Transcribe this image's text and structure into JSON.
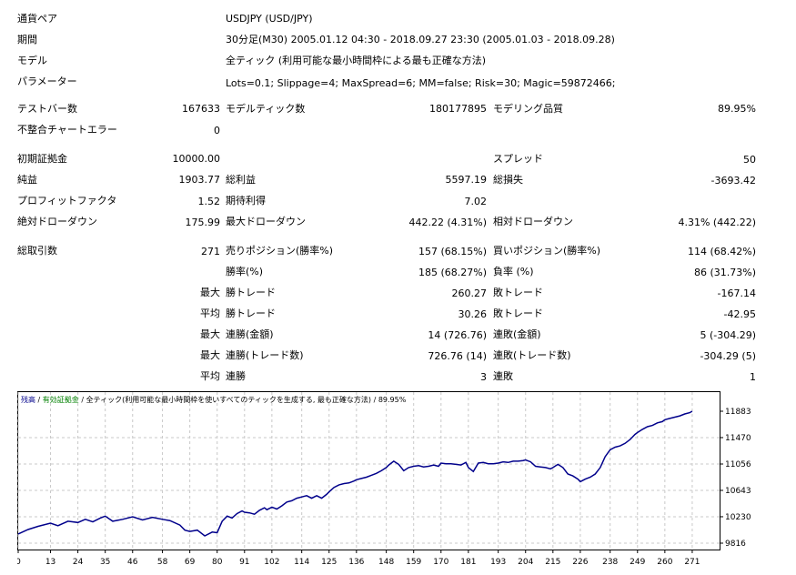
{
  "info": {
    "symbol_label": "通貨ペア",
    "symbol": "USDJPY (USD/JPY)",
    "period_label": "期間",
    "period": "30分足(M30) 2005.01.12 04:30 - 2018.09.27 23:30 (2005.01.03 - 2018.09.28)",
    "model_label": "モデル",
    "model": "全ティック (利用可能な最小時間枠による最も正確な方法)",
    "params_label": "パラメーター",
    "params": "Lots=0.1; Slippage=4; MaxSpread=6; MM=false; Risk=30; Magic=59872466;"
  },
  "stats": {
    "bars_label": "テストバー数",
    "bars": "167633",
    "ticks_label": "モデルティック数",
    "ticks": "180177895",
    "quality_label": "モデリング品質",
    "quality": "89.95%",
    "errors_label": "不整合チャートエラー",
    "errors": "0",
    "deposit_label": "初期証拠金",
    "deposit": "10000.00",
    "spread_label": "スプレッド",
    "spread": "50",
    "net_label": "純益",
    "net": "1903.77",
    "gross_profit_label": "総利益",
    "gross_profit": "5597.19",
    "gross_loss_label": "総損失",
    "gross_loss": "-3693.42",
    "pf_label": "プロフィットファクタ",
    "pf": "1.52",
    "payoff_label": "期待利得",
    "payoff": "7.02",
    "abs_dd_label": "絶対ドローダウン",
    "abs_dd": "175.99",
    "max_dd_label": "最大ドローダウン",
    "max_dd": "442.22 (4.31%)",
    "rel_dd_label": "相対ドローダウン",
    "rel_dd": "4.31% (442.22)",
    "trades_label": "総取引数",
    "trades": "271",
    "short_label": "売りポジション(勝率%)",
    "short": "157 (68.15%)",
    "long_label": "買いポジション(勝率%)",
    "long": "114 (68.42%)",
    "win_rate_label": "勝率(%)",
    "win_rate": "185 (68.27%)",
    "loss_rate_label": "負率 (%)",
    "loss_rate": "86 (31.73%)",
    "max_label": "最大",
    "avg_label": "平均",
    "largest_win_label": "勝トレード",
    "largest_win": "260.27",
    "largest_loss_label": "敗トレード",
    "largest_loss": "-167.14",
    "avg_win_label": "勝トレード",
    "avg_win": "30.26",
    "avg_loss_label": "敗トレード",
    "avg_loss": "-42.95",
    "max_cons_wins_label": "連勝(金額)",
    "max_cons_wins": "14 (726.76)",
    "max_cons_losses_label": "連敗(金額)",
    "max_cons_losses": "5 (-304.29)",
    "max_cons_profit_label": "連勝(トレード数)",
    "max_cons_profit": "726.76 (14)",
    "max_cons_loss_label": "連敗(トレード数)",
    "max_cons_loss": "-304.29 (5)",
    "avg_cons_wins_label": "連勝",
    "avg_cons_wins": "3",
    "avg_cons_losses_label": "連敗",
    "avg_cons_losses": "1"
  },
  "chart_legend": {
    "balance": "残高",
    "sep1": " / ",
    "equity": "有効証拠金",
    "rest": " / 全ティック(利用可能な最小時間枠を使いすべてのティックを生成する, 最も正確な方法) / 89.95%"
  },
  "colors": {
    "balance": "#00008b",
    "equity": "#008000",
    "grid": "#c8c8c8"
  },
  "chart_data": {
    "type": "line",
    "title": "",
    "x_ticks": [
      "0",
      "13",
      "24",
      "35",
      "46",
      "58",
      "69",
      "80",
      "91",
      "102",
      "114",
      "125",
      "136",
      "148",
      "159",
      "170",
      "181",
      "193",
      "204",
      "215",
      "226",
      "238",
      "249",
      "260",
      "271"
    ],
    "y_ticks": [
      "11883",
      "11470",
      "11056",
      "10643",
      "10230",
      "9816"
    ],
    "ylim": [
      9816,
      11883
    ],
    "xlim": [
      0,
      282
    ],
    "series": [
      {
        "x": [
          0,
          4,
          8,
          13,
          16,
          20,
          24,
          27,
          30,
          33,
          35,
          38,
          42,
          46,
          50,
          54,
          58,
          61,
          65,
          67,
          69,
          72,
          75,
          78,
          80,
          82,
          84,
          86,
          88,
          90,
          91,
          93,
          95,
          97,
          99,
          100,
          102,
          104,
          106,
          108,
          110,
          112,
          114,
          116,
          118,
          120,
          122,
          124,
          125,
          127,
          129,
          131,
          133,
          135,
          136,
          138,
          140,
          142,
          144,
          146,
          148,
          149,
          151,
          153,
          155,
          157,
          159,
          161,
          163,
          165,
          167,
          169,
          170,
          172,
          174,
          176,
          178,
          180,
          181,
          183,
          185,
          187,
          189,
          191,
          193,
          195,
          197,
          199,
          201,
          203,
          204,
          206,
          208,
          210,
          212,
          214,
          215,
          217,
          219,
          221,
          223,
          225,
          226,
          228,
          230,
          232,
          234,
          236,
          238,
          240,
          242,
          244,
          246,
          248,
          249,
          251,
          253,
          255,
          257,
          259,
          260,
          262,
          264,
          266,
          268,
          270,
          271
        ],
        "y": [
          9960,
          10030,
          10080,
          10130,
          10090,
          10160,
          10140,
          10190,
          10150,
          10210,
          10240,
          10160,
          10190,
          10230,
          10180,
          10220,
          10190,
          10170,
          10100,
          10020,
          10000,
          10020,
          9930,
          9990,
          9980,
          10160,
          10240,
          10210,
          10280,
          10320,
          10300,
          10290,
          10270,
          10330,
          10370,
          10340,
          10380,
          10350,
          10400,
          10460,
          10480,
          10520,
          10540,
          10560,
          10520,
          10560,
          10520,
          10580,
          10620,
          10690,
          10730,
          10750,
          10760,
          10790,
          10810,
          10830,
          10850,
          10880,
          10910,
          10950,
          11000,
          11040,
          11100,
          11050,
          10950,
          11000,
          11020,
          11030,
          11010,
          11020,
          11040,
          11020,
          11070,
          11060,
          11060,
          11050,
          11040,
          11080,
          11000,
          10940,
          11070,
          11080,
          11060,
          11060,
          11070,
          11090,
          11080,
          11100,
          11100,
          11110,
          11120,
          11090,
          11020,
          11010,
          11000,
          10980,
          11000,
          11050,
          11000,
          10900,
          10870,
          10820,
          10780,
          10820,
          10850,
          10900,
          11000,
          11170,
          11280,
          11320,
          11340,
          11380,
          11440,
          11520,
          11550,
          11600,
          11640,
          11660,
          11700,
          11720,
          11750,
          11770,
          11790,
          11810,
          11840,
          11860,
          11883
        ]
      }
    ]
  }
}
